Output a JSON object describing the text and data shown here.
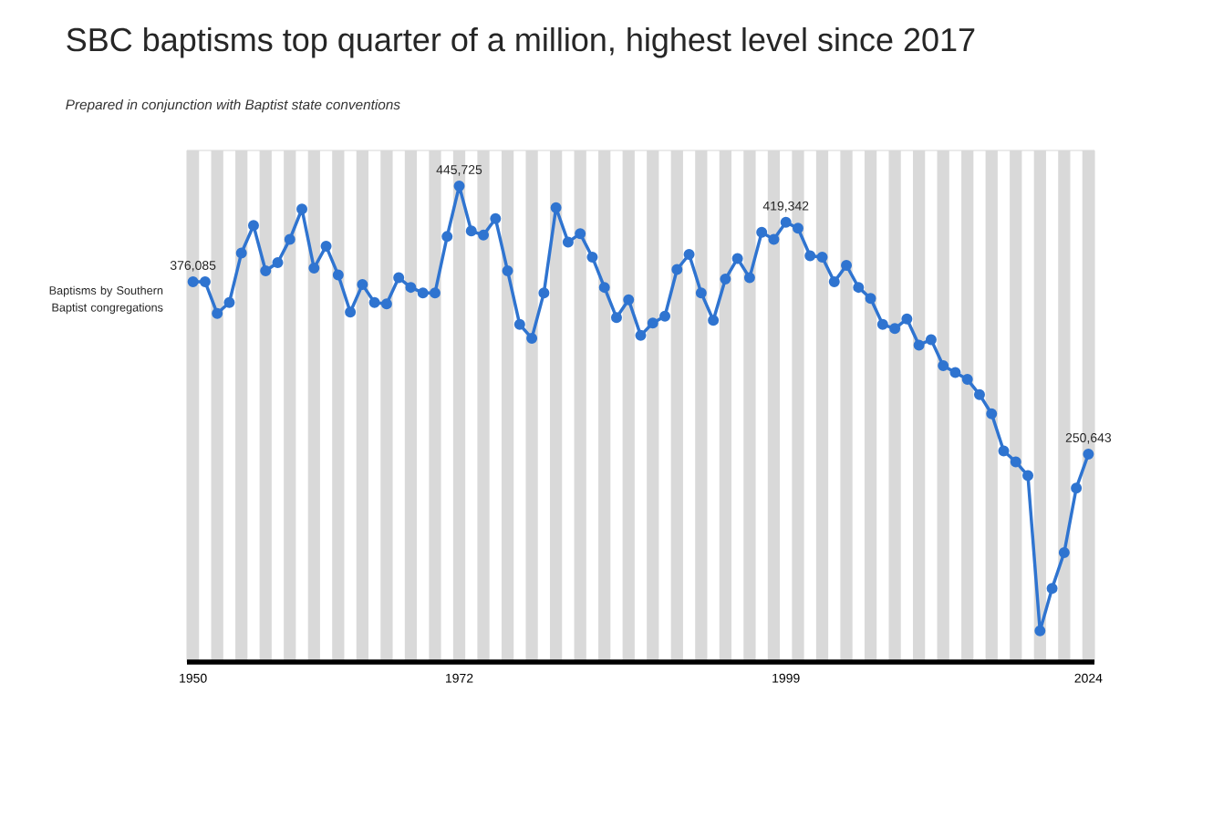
{
  "chart_data": {
    "type": "line",
    "title": "SBC baptisms top quarter of a million, highest level since 2017",
    "subtitle": "Prepared in conjunction with Baptist state conventions",
    "x": [
      1950,
      1951,
      1952,
      1953,
      1954,
      1955,
      1956,
      1957,
      1958,
      1959,
      1960,
      1961,
      1962,
      1963,
      1964,
      1965,
      1966,
      1967,
      1968,
      1969,
      1970,
      1971,
      1972,
      1973,
      1974,
      1975,
      1976,
      1977,
      1978,
      1979,
      1980,
      1981,
      1982,
      1983,
      1984,
      1985,
      1986,
      1987,
      1988,
      1989,
      1990,
      1991,
      1992,
      1993,
      1994,
      1995,
      1996,
      1997,
      1998,
      1999,
      2000,
      2001,
      2002,
      2003,
      2004,
      2005,
      2006,
      2007,
      2008,
      2009,
      2010,
      2011,
      2012,
      2013,
      2014,
      2015,
      2016,
      2017,
      2018,
      2019,
      2020,
      2021,
      2022,
      2023,
      2024
    ],
    "series": [
      {
        "name": "Baptisms by Southern Baptist congregations",
        "color": "#2f74d0",
        "values": [
          376085,
          376000,
          353000,
          361000,
          397000,
          417000,
          384000,
          390000,
          407000,
          429000,
          386000,
          402000,
          381000,
          354000,
          374000,
          361000,
          360000,
          379000,
          372000,
          368000,
          368000,
          409000,
          445725,
          413000,
          410000,
          422000,
          384000,
          345000,
          335000,
          368000,
          430000,
          405000,
          411000,
          394000,
          372000,
          350000,
          363000,
          337000,
          346000,
          351000,
          385000,
          396000,
          368000,
          348000,
          378000,
          393000,
          379000,
          412000,
          407000,
          419342,
          415000,
          395000,
          394000,
          376000,
          388000,
          372000,
          364000,
          345000,
          342000,
          349000,
          330000,
          334000,
          315000,
          310000,
          305000,
          294000,
          280000,
          253000,
          245000,
          235000,
          122000,
          153000,
          179000,
          226000,
          250643
        ],
        "value_labels": [
          "376,085",
          null,
          null,
          null,
          null,
          null,
          null,
          null,
          null,
          null,
          null,
          null,
          null,
          null,
          null,
          null,
          null,
          null,
          null,
          null,
          null,
          null,
          "445,725",
          null,
          null,
          null,
          null,
          null,
          null,
          null,
          null,
          null,
          null,
          null,
          null,
          null,
          null,
          null,
          null,
          null,
          null,
          null,
          null,
          null,
          null,
          null,
          null,
          null,
          null,
          "419,342",
          null,
          null,
          null,
          null,
          null,
          null,
          null,
          null,
          null,
          null,
          null,
          null,
          null,
          null,
          null,
          null,
          null,
          null,
          null,
          null,
          null,
          null,
          null,
          null,
          "250,643"
        ]
      }
    ],
    "xlim": [
      1949.5,
      2024.5
    ],
    "xticks": [
      1950,
      1972,
      1999,
      2024
    ],
    "marker": "circle",
    "line_style": "solid",
    "bands": [
      {
        "axis": "x",
        "from": 1949.5,
        "to": 1950.5,
        "color": "#d9d9d9"
      },
      {
        "axis": "x",
        "from": 1951.5,
        "to": 1952.5,
        "color": "#d9d9d9"
      },
      {
        "axis": "x",
        "from": 1953.5,
        "to": 1954.5,
        "color": "#d9d9d9"
      },
      {
        "axis": "x",
        "from": 1955.5,
        "to": 1956.5,
        "color": "#d9d9d9"
      },
      {
        "axis": "x",
        "from": 1957.5,
        "to": 1958.5,
        "color": "#d9d9d9"
      },
      {
        "axis": "x",
        "from": 1959.5,
        "to": 1960.5,
        "color": "#d9d9d9"
      },
      {
        "axis": "x",
        "from": 1961.5,
        "to": 1962.5,
        "color": "#d9d9d9"
      },
      {
        "axis": "x",
        "from": 1963.5,
        "to": 1964.5,
        "color": "#d9d9d9"
      },
      {
        "axis": "x",
        "from": 1965.5,
        "to": 1966.5,
        "color": "#d9d9d9"
      },
      {
        "axis": "x",
        "from": 1967.5,
        "to": 1968.5,
        "color": "#d9d9d9"
      },
      {
        "axis": "x",
        "from": 1969.5,
        "to": 1970.5,
        "color": "#d9d9d9"
      },
      {
        "axis": "x",
        "from": 1971.5,
        "to": 1972.5,
        "color": "#d9d9d9"
      },
      {
        "axis": "x",
        "from": 1973.5,
        "to": 1974.5,
        "color": "#d9d9d9"
      },
      {
        "axis": "x",
        "from": 1975.5,
        "to": 1976.5,
        "color": "#d9d9d9"
      },
      {
        "axis": "x",
        "from": 1977.5,
        "to": 1978.5,
        "color": "#d9d9d9"
      },
      {
        "axis": "x",
        "from": 1979.5,
        "to": 1980.5,
        "color": "#d9d9d9"
      },
      {
        "axis": "x",
        "from": 1981.5,
        "to": 1982.5,
        "color": "#d9d9d9"
      },
      {
        "axis": "x",
        "from": 1983.5,
        "to": 1984.5,
        "color": "#d9d9d9"
      },
      {
        "axis": "x",
        "from": 1985.5,
        "to": 1986.5,
        "color": "#d9d9d9"
      },
      {
        "axis": "x",
        "from": 1987.5,
        "to": 1988.5,
        "color": "#d9d9d9"
      },
      {
        "axis": "x",
        "from": 1989.5,
        "to": 1990.5,
        "color": "#d9d9d9"
      },
      {
        "axis": "x",
        "from": 1991.5,
        "to": 1992.5,
        "color": "#d9d9d9"
      },
      {
        "axis": "x",
        "from": 1993.5,
        "to": 1994.5,
        "color": "#d9d9d9"
      },
      {
        "axis": "x",
        "from": 1995.5,
        "to": 1996.5,
        "color": "#d9d9d9"
      },
      {
        "axis": "x",
        "from": 1997.5,
        "to": 1998.5,
        "color": "#d9d9d9"
      },
      {
        "axis": "x",
        "from": 1999.5,
        "to": 2000.5,
        "color": "#d9d9d9"
      },
      {
        "axis": "x",
        "from": 2001.5,
        "to": 2002.5,
        "color": "#d9d9d9"
      },
      {
        "axis": "x",
        "from": 2003.5,
        "to": 2004.5,
        "color": "#d9d9d9"
      },
      {
        "axis": "x",
        "from": 2005.5,
        "to": 2006.5,
        "color": "#d9d9d9"
      },
      {
        "axis": "x",
        "from": 2007.5,
        "to": 2008.5,
        "color": "#d9d9d9"
      },
      {
        "axis": "x",
        "from": 2009.5,
        "to": 2010.5,
        "color": "#d9d9d9"
      },
      {
        "axis": "x",
        "from": 2011.5,
        "to": 2012.5,
        "color": "#d9d9d9"
      },
      {
        "axis": "x",
        "from": 2013.5,
        "to": 2014.5,
        "color": "#d9d9d9"
      },
      {
        "axis": "x",
        "from": 2015.5,
        "to": 2016.5,
        "color": "#d9d9d9"
      },
      {
        "axis": "x",
        "from": 2017.5,
        "to": 2018.5,
        "color": "#d9d9d9"
      },
      {
        "axis": "x",
        "from": 2019.5,
        "to": 2020.5,
        "color": "#d9d9d9"
      },
      {
        "axis": "x",
        "from": 2021.5,
        "to": 2022.5,
        "color": "#d9d9d9"
      },
      {
        "axis": "x",
        "from": 2023.5,
        "to": 2024.5,
        "color": "#d9d9d9"
      }
    ]
  }
}
